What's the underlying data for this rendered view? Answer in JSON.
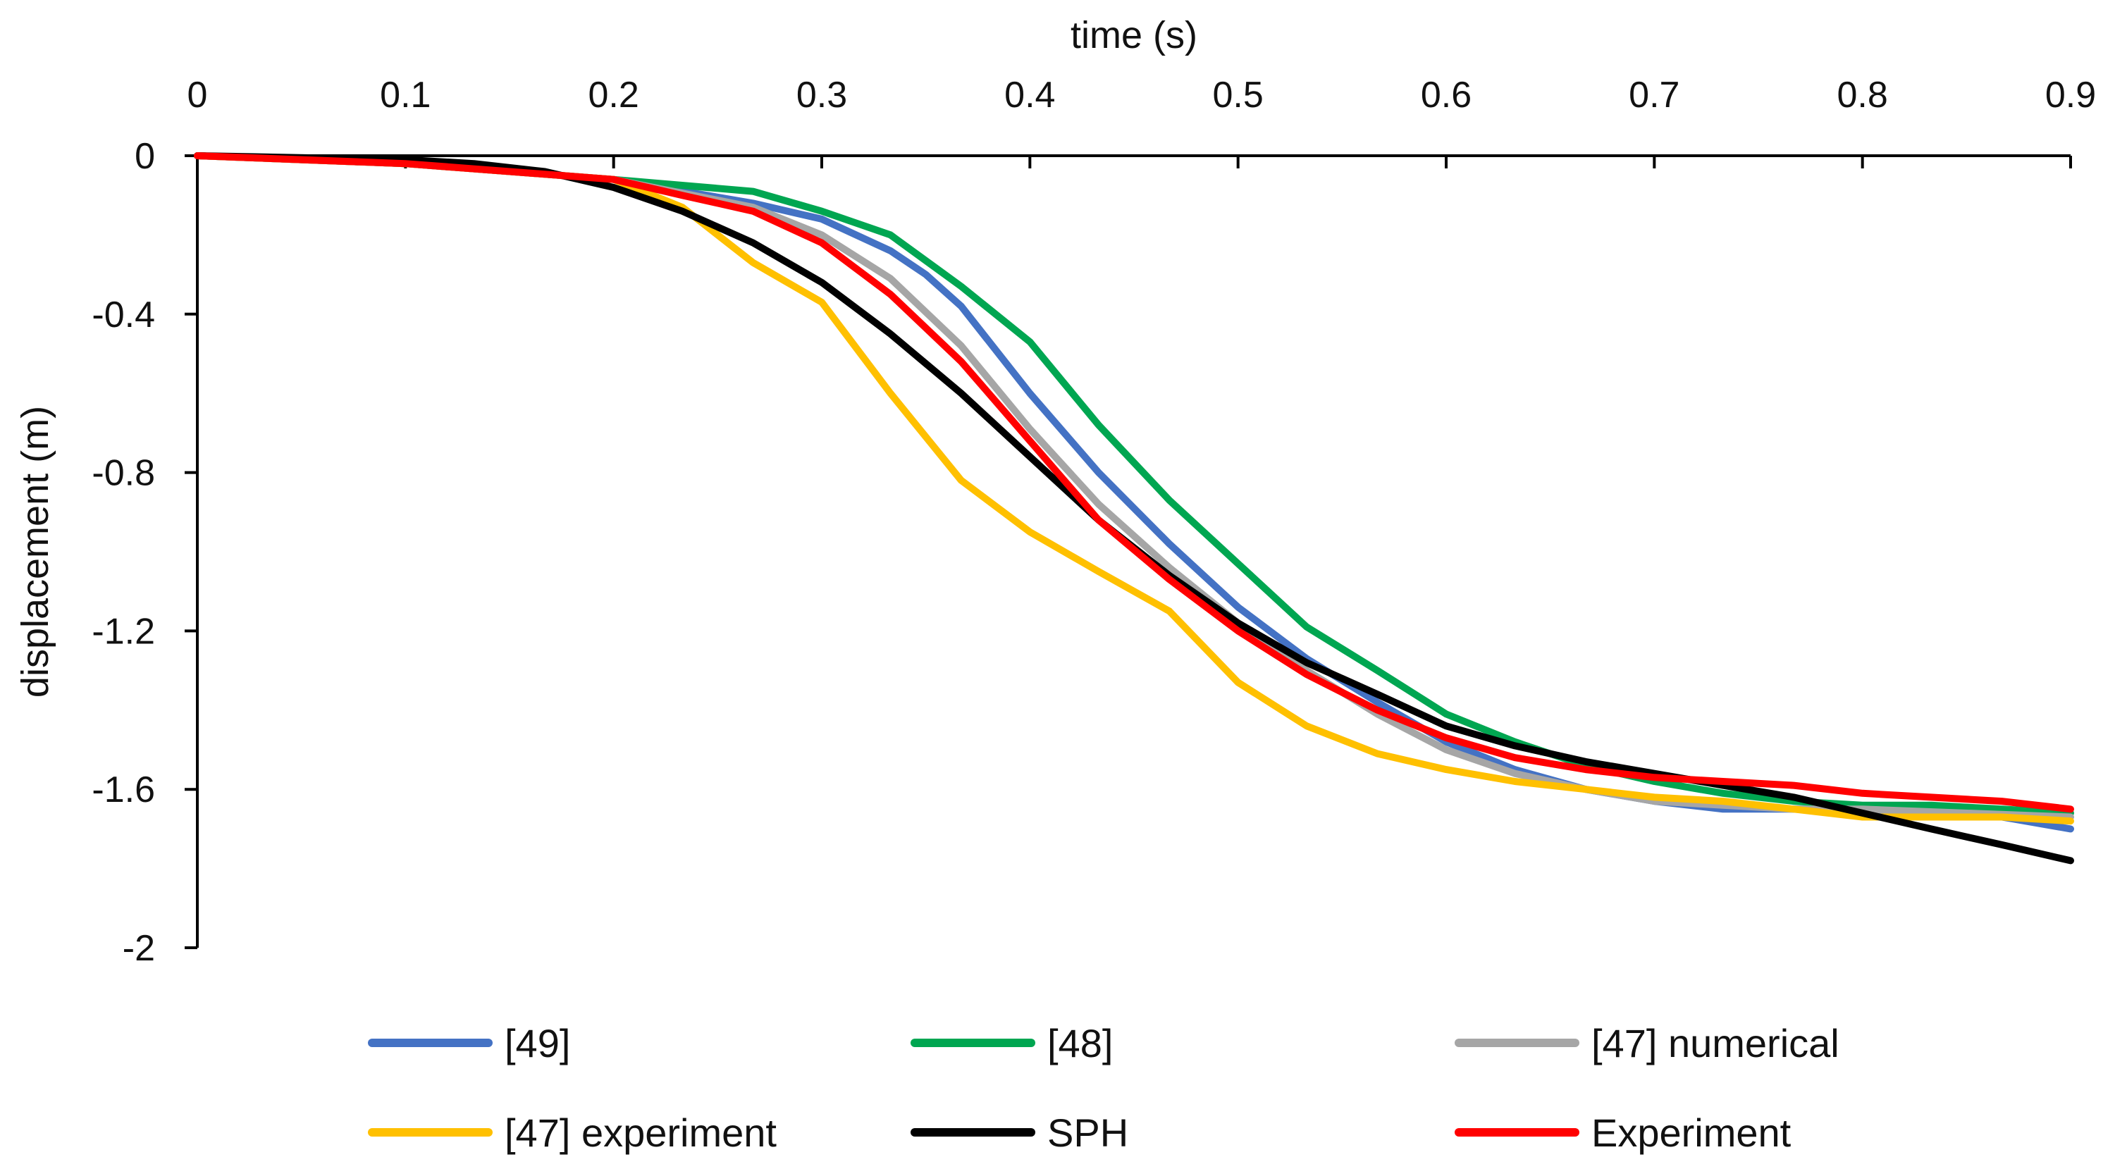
{
  "chart_data": {
    "type": "line",
    "title": "",
    "xlabel": "time (s)",
    "ylabel": "displacement (m)",
    "xlim": [
      0,
      0.9
    ],
    "ylim": [
      -2,
      0
    ],
    "x_ticks": [
      "0",
      "0.1",
      "0.2",
      "0.3",
      "0.4",
      "0.5",
      "0.6",
      "0.7",
      "0.8",
      "0.9"
    ],
    "y_ticks": [
      "0",
      "-0.4",
      "-0.8",
      "-1.2",
      "-1.6",
      "-2"
    ],
    "x_axis_position": "top",
    "grid": false,
    "legend_position": "bottom",
    "series": [
      {
        "name": "[49]",
        "color": "#4472C4",
        "points": [
          [
            0,
            0
          ],
          [
            0.1,
            -0.02
          ],
          [
            0.2,
            -0.06
          ],
          [
            0.267,
            -0.12
          ],
          [
            0.3,
            -0.16
          ],
          [
            0.333,
            -0.24
          ],
          [
            0.35,
            -0.3
          ],
          [
            0.367,
            -0.38
          ],
          [
            0.4,
            -0.6
          ],
          [
            0.433,
            -0.8
          ],
          [
            0.467,
            -0.98
          ],
          [
            0.5,
            -1.14
          ],
          [
            0.533,
            -1.27
          ],
          [
            0.567,
            -1.38
          ],
          [
            0.6,
            -1.48
          ],
          [
            0.633,
            -1.55
          ],
          [
            0.667,
            -1.6
          ],
          [
            0.7,
            -1.63
          ],
          [
            0.733,
            -1.65
          ],
          [
            0.767,
            -1.65
          ],
          [
            0.8,
            -1.65
          ],
          [
            0.833,
            -1.66
          ],
          [
            0.867,
            -1.67
          ],
          [
            0.9,
            -1.7
          ]
        ]
      },
      {
        "name": "[48]",
        "color": "#00A651",
        "points": [
          [
            0,
            0
          ],
          [
            0.1,
            -0.02
          ],
          [
            0.2,
            -0.06
          ],
          [
            0.267,
            -0.09
          ],
          [
            0.3,
            -0.14
          ],
          [
            0.333,
            -0.2
          ],
          [
            0.367,
            -0.33
          ],
          [
            0.4,
            -0.47
          ],
          [
            0.433,
            -0.68
          ],
          [
            0.467,
            -0.87
          ],
          [
            0.5,
            -1.03
          ],
          [
            0.533,
            -1.19
          ],
          [
            0.567,
            -1.3
          ],
          [
            0.6,
            -1.41
          ],
          [
            0.633,
            -1.48
          ],
          [
            0.667,
            -1.54
          ],
          [
            0.7,
            -1.58
          ],
          [
            0.733,
            -1.61
          ],
          [
            0.767,
            -1.63
          ],
          [
            0.8,
            -1.64
          ],
          [
            0.833,
            -1.64
          ],
          [
            0.867,
            -1.65
          ],
          [
            0.9,
            -1.66
          ]
        ]
      },
      {
        "name": "[47] numerical",
        "color": "#A6A6A6",
        "points": [
          [
            0,
            0
          ],
          [
            0.1,
            -0.02
          ],
          [
            0.2,
            -0.06
          ],
          [
            0.267,
            -0.13
          ],
          [
            0.3,
            -0.2
          ],
          [
            0.333,
            -0.31
          ],
          [
            0.367,
            -0.48
          ],
          [
            0.4,
            -0.69
          ],
          [
            0.433,
            -0.88
          ],
          [
            0.467,
            -1.04
          ],
          [
            0.5,
            -1.18
          ],
          [
            0.533,
            -1.3
          ],
          [
            0.567,
            -1.41
          ],
          [
            0.6,
            -1.5
          ],
          [
            0.633,
            -1.56
          ],
          [
            0.667,
            -1.6
          ],
          [
            0.7,
            -1.63
          ],
          [
            0.733,
            -1.64
          ],
          [
            0.767,
            -1.65
          ],
          [
            0.8,
            -1.65
          ],
          [
            0.9,
            -1.67
          ]
        ]
      },
      {
        "name": "[47] experiment",
        "color": "#FFC000",
        "points": [
          [
            0,
            0
          ],
          [
            0.1,
            -0.02
          ],
          [
            0.2,
            -0.06
          ],
          [
            0.233,
            -0.13
          ],
          [
            0.267,
            -0.27
          ],
          [
            0.3,
            -0.37
          ],
          [
            0.333,
            -0.6
          ],
          [
            0.367,
            -0.82
          ],
          [
            0.4,
            -0.95
          ],
          [
            0.433,
            -1.05
          ],
          [
            0.467,
            -1.15
          ],
          [
            0.5,
            -1.33
          ],
          [
            0.533,
            -1.44
          ],
          [
            0.567,
            -1.51
          ],
          [
            0.6,
            -1.55
          ],
          [
            0.633,
            -1.58
          ],
          [
            0.667,
            -1.6
          ],
          [
            0.7,
            -1.62
          ],
          [
            0.733,
            -1.63
          ],
          [
            0.767,
            -1.65
          ],
          [
            0.8,
            -1.67
          ],
          [
            0.833,
            -1.67
          ],
          [
            0.867,
            -1.67
          ],
          [
            0.9,
            -1.68
          ]
        ]
      },
      {
        "name": "SPH",
        "color": "#000000",
        "points": [
          [
            0,
            0
          ],
          [
            0.1,
            -0.01
          ],
          [
            0.133,
            -0.02
          ],
          [
            0.167,
            -0.04
          ],
          [
            0.2,
            -0.08
          ],
          [
            0.233,
            -0.14
          ],
          [
            0.267,
            -0.22
          ],
          [
            0.3,
            -0.32
          ],
          [
            0.333,
            -0.45
          ],
          [
            0.367,
            -0.6
          ],
          [
            0.4,
            -0.76
          ],
          [
            0.433,
            -0.92
          ],
          [
            0.467,
            -1.06
          ],
          [
            0.5,
            -1.18
          ],
          [
            0.533,
            -1.28
          ],
          [
            0.567,
            -1.36
          ],
          [
            0.6,
            -1.44
          ],
          [
            0.633,
            -1.49
          ],
          [
            0.667,
            -1.53
          ],
          [
            0.7,
            -1.56
          ],
          [
            0.733,
            -1.59
          ],
          [
            0.767,
            -1.62
          ],
          [
            0.8,
            -1.66
          ],
          [
            0.833,
            -1.7
          ],
          [
            0.867,
            -1.74
          ],
          [
            0.9,
            -1.78
          ]
        ]
      },
      {
        "name": "Experiment",
        "color": "#FF0000",
        "points": [
          [
            0,
            0
          ],
          [
            0.1,
            -0.02
          ],
          [
            0.2,
            -0.06
          ],
          [
            0.233,
            -0.1
          ],
          [
            0.267,
            -0.14
          ],
          [
            0.3,
            -0.22
          ],
          [
            0.333,
            -0.35
          ],
          [
            0.367,
            -0.52
          ],
          [
            0.4,
            -0.72
          ],
          [
            0.433,
            -0.92
          ],
          [
            0.467,
            -1.07
          ],
          [
            0.5,
            -1.2
          ],
          [
            0.533,
            -1.31
          ],
          [
            0.567,
            -1.4
          ],
          [
            0.6,
            -1.47
          ],
          [
            0.633,
            -1.52
          ],
          [
            0.667,
            -1.55
          ],
          [
            0.7,
            -1.57
          ],
          [
            0.733,
            -1.58
          ],
          [
            0.767,
            -1.59
          ],
          [
            0.8,
            -1.61
          ],
          [
            0.833,
            -1.62
          ],
          [
            0.867,
            -1.63
          ],
          [
            0.9,
            -1.65
          ]
        ]
      }
    ]
  }
}
